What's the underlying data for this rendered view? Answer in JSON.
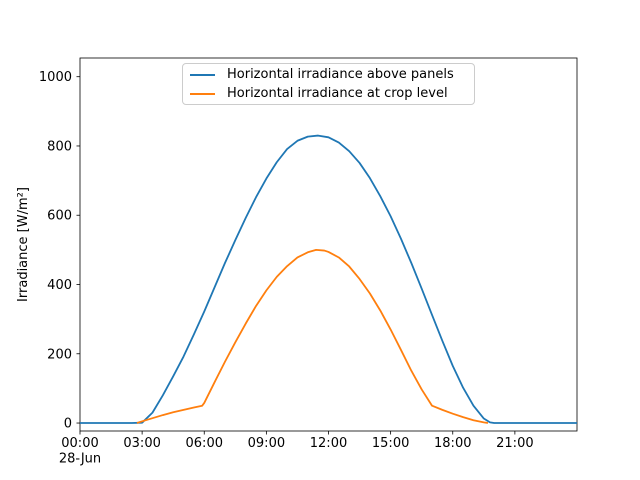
{
  "chart_data": {
    "type": "line",
    "title": "",
    "ylabel": "Irradiance [W/m²]",
    "x_offset_label": "28-Jun",
    "xlim_hours": [
      0,
      24
    ],
    "ylim": [
      -23,
      1054
    ],
    "grid": false,
    "x_ticks": [
      {
        "hour": 0,
        "label": "00:00"
      },
      {
        "hour": 3,
        "label": "03:00"
      },
      {
        "hour": 6,
        "label": "06:00"
      },
      {
        "hour": 9,
        "label": "09:00"
      },
      {
        "hour": 12,
        "label": "12:00"
      },
      {
        "hour": 15,
        "label": "15:00"
      },
      {
        "hour": 18,
        "label": "18:00"
      },
      {
        "hour": 21,
        "label": "21:00"
      }
    ],
    "y_ticks": [
      {
        "value": 0,
        "label": "0"
      },
      {
        "value": 200,
        "label": "200"
      },
      {
        "value": 400,
        "label": "400"
      },
      {
        "value": 600,
        "label": "600"
      },
      {
        "value": 800,
        "label": "800"
      },
      {
        "value": 1000,
        "label": "1000"
      }
    ],
    "legend": {
      "position": "upper center",
      "border_color": "#cccccc"
    },
    "series": [
      {
        "name": "Horizontal irradiance above panels",
        "color": "#1f77b4",
        "points": [
          [
            0,
            0
          ],
          [
            0.5,
            0
          ],
          [
            1,
            0
          ],
          [
            1.5,
            0
          ],
          [
            2,
            0
          ],
          [
            2.5,
            0
          ],
          [
            3,
            1
          ],
          [
            3.5,
            30
          ],
          [
            4,
            80
          ],
          [
            4.5,
            135
          ],
          [
            5,
            192
          ],
          [
            5.5,
            256
          ],
          [
            6,
            322
          ],
          [
            6.5,
            392
          ],
          [
            7,
            462
          ],
          [
            7.5,
            528
          ],
          [
            8,
            592
          ],
          [
            8.5,
            652
          ],
          [
            9,
            706
          ],
          [
            9.5,
            753
          ],
          [
            10,
            791
          ],
          [
            10.5,
            815
          ],
          [
            11,
            827
          ],
          [
            11.5,
            830
          ],
          [
            12,
            825
          ],
          [
            12.5,
            810
          ],
          [
            13,
            785
          ],
          [
            13.5,
            751
          ],
          [
            14,
            707
          ],
          [
            14.5,
            655
          ],
          [
            15,
            597
          ],
          [
            15.5,
            532
          ],
          [
            16,
            462
          ],
          [
            16.5,
            388
          ],
          [
            17,
            312
          ],
          [
            17.5,
            237
          ],
          [
            18,
            165
          ],
          [
            18.5,
            102
          ],
          [
            19,
            50
          ],
          [
            19.5,
            13
          ],
          [
            19.8,
            2
          ],
          [
            20,
            0
          ],
          [
            20.5,
            0
          ],
          [
            21,
            0
          ],
          [
            21.5,
            0
          ],
          [
            22,
            0
          ],
          [
            22.5,
            0
          ],
          [
            23,
            0
          ],
          [
            23.5,
            0
          ],
          [
            24,
            0
          ]
        ]
      },
      {
        "name": "Horizontal irradiance at crop level",
        "color": "#ff7f0e",
        "points": [
          [
            2.75,
            0
          ],
          [
            3,
            5
          ],
          [
            3.5,
            14
          ],
          [
            4,
            23
          ],
          [
            4.5,
            31
          ],
          [
            5,
            38
          ],
          [
            5.5,
            45
          ],
          [
            5.9,
            50
          ],
          [
            6,
            58
          ],
          [
            6.5,
            118
          ],
          [
            7,
            177
          ],
          [
            7.5,
            233
          ],
          [
            8,
            287
          ],
          [
            8.5,
            338
          ],
          [
            9,
            383
          ],
          [
            9.5,
            422
          ],
          [
            10,
            453
          ],
          [
            10.5,
            478
          ],
          [
            11,
            493
          ],
          [
            11.4,
            500
          ],
          [
            11.8,
            498
          ],
          [
            12,
            494
          ],
          [
            12.5,
            478
          ],
          [
            13,
            452
          ],
          [
            13.5,
            416
          ],
          [
            14,
            374
          ],
          [
            14.5,
            325
          ],
          [
            15,
            270
          ],
          [
            15.5,
            211
          ],
          [
            16,
            151
          ],
          [
            16.5,
            97
          ],
          [
            17,
            50
          ],
          [
            17.5,
            38
          ],
          [
            18,
            27
          ],
          [
            18.5,
            17
          ],
          [
            19,
            8
          ],
          [
            19.5,
            2
          ],
          [
            19.7,
            0
          ]
        ]
      }
    ]
  }
}
